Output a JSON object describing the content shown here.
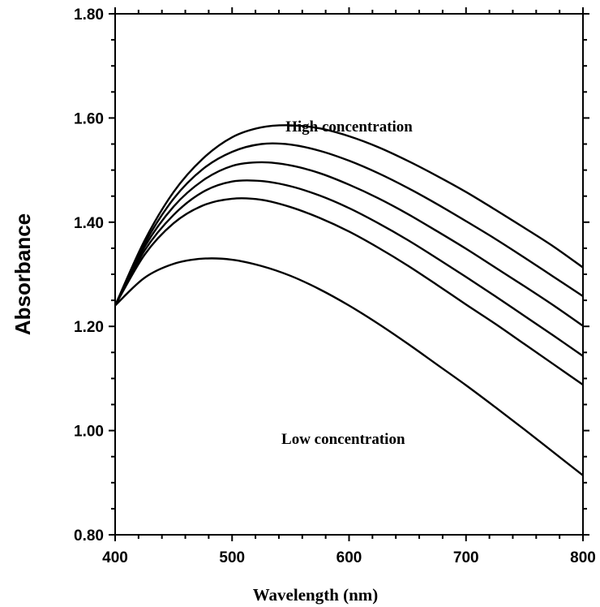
{
  "chart_data": {
    "type": "line",
    "title": "",
    "xlabel": "Wavelength (nm)",
    "ylabel": "Absorbance",
    "xlim": [
      400,
      800
    ],
    "ylim": [
      0.8,
      1.8
    ],
    "x_ticks": [
      400,
      500,
      600,
      700,
      800
    ],
    "x_tick_labels": [
      "400",
      "500",
      "600",
      "700",
      "800"
    ],
    "y_ticks": [
      0.8,
      1.0,
      1.2,
      1.4,
      1.6,
      1.8
    ],
    "y_tick_labels": [
      "0.80",
      "1.00",
      "1.20",
      "1.40",
      "1.60",
      "1.80"
    ],
    "grid": false,
    "annotations": [
      {
        "text": "High concentration",
        "x": 600,
        "y": 1.585
      },
      {
        "text": "Low concentration",
        "x": 595,
        "y": 0.985
      }
    ],
    "series": [
      {
        "x": [
          400,
          425,
          450,
          475,
          500,
          525,
          550,
          575,
          600,
          625,
          650,
          675,
          700,
          725,
          750,
          775,
          800
        ],
        "values": [
          1.24,
          1.293,
          1.32,
          1.33,
          1.328,
          1.316,
          1.297,
          1.271,
          1.24,
          1.205,
          1.167,
          1.127,
          1.087,
          1.045,
          1.002,
          0.958,
          0.914
        ]
      },
      {
        "x": [
          400,
          425,
          450,
          475,
          500,
          525,
          550,
          575,
          600,
          625,
          650,
          675,
          700,
          725,
          750,
          775,
          800
        ],
        "values": [
          1.24,
          1.337,
          1.398,
          1.432,
          1.445,
          1.443,
          1.429,
          1.408,
          1.382,
          1.351,
          1.317,
          1.28,
          1.242,
          1.205,
          1.166,
          1.127,
          1.088
        ]
      },
      {
        "x": [
          400,
          425,
          450,
          475,
          500,
          525,
          550,
          575,
          600,
          625,
          650,
          675,
          700,
          725,
          750,
          775,
          800
        ],
        "values": [
          1.24,
          1.345,
          1.414,
          1.458,
          1.478,
          1.479,
          1.469,
          1.451,
          1.427,
          1.398,
          1.366,
          1.331,
          1.295,
          1.258,
          1.22,
          1.182,
          1.143
        ]
      },
      {
        "x": [
          400,
          425,
          450,
          475,
          500,
          525,
          550,
          575,
          600,
          625,
          650,
          675,
          700,
          725,
          750,
          775,
          800
        ],
        "values": [
          1.24,
          1.352,
          1.43,
          1.48,
          1.508,
          1.515,
          1.509,
          1.494,
          1.472,
          1.446,
          1.416,
          1.383,
          1.349,
          1.313,
          1.277,
          1.24,
          1.201
        ]
      },
      {
        "x": [
          400,
          425,
          450,
          475,
          500,
          525,
          550,
          575,
          600,
          625,
          650,
          675,
          700,
          725,
          750,
          775,
          800
        ],
        "values": [
          1.24,
          1.358,
          1.445,
          1.502,
          1.535,
          1.55,
          1.549,
          1.537,
          1.518,
          1.494,
          1.466,
          1.435,
          1.402,
          1.368,
          1.332,
          1.295,
          1.258
        ]
      },
      {
        "x": [
          400,
          425,
          450,
          475,
          500,
          525,
          550,
          575,
          600,
          625,
          650,
          675,
          700,
          725,
          750,
          775,
          800
        ],
        "values": [
          1.24,
          1.364,
          1.458,
          1.522,
          1.563,
          1.582,
          1.586,
          1.58,
          1.565,
          1.544,
          1.518,
          1.489,
          1.458,
          1.424,
          1.389,
          1.353,
          1.313
        ]
      }
    ]
  }
}
